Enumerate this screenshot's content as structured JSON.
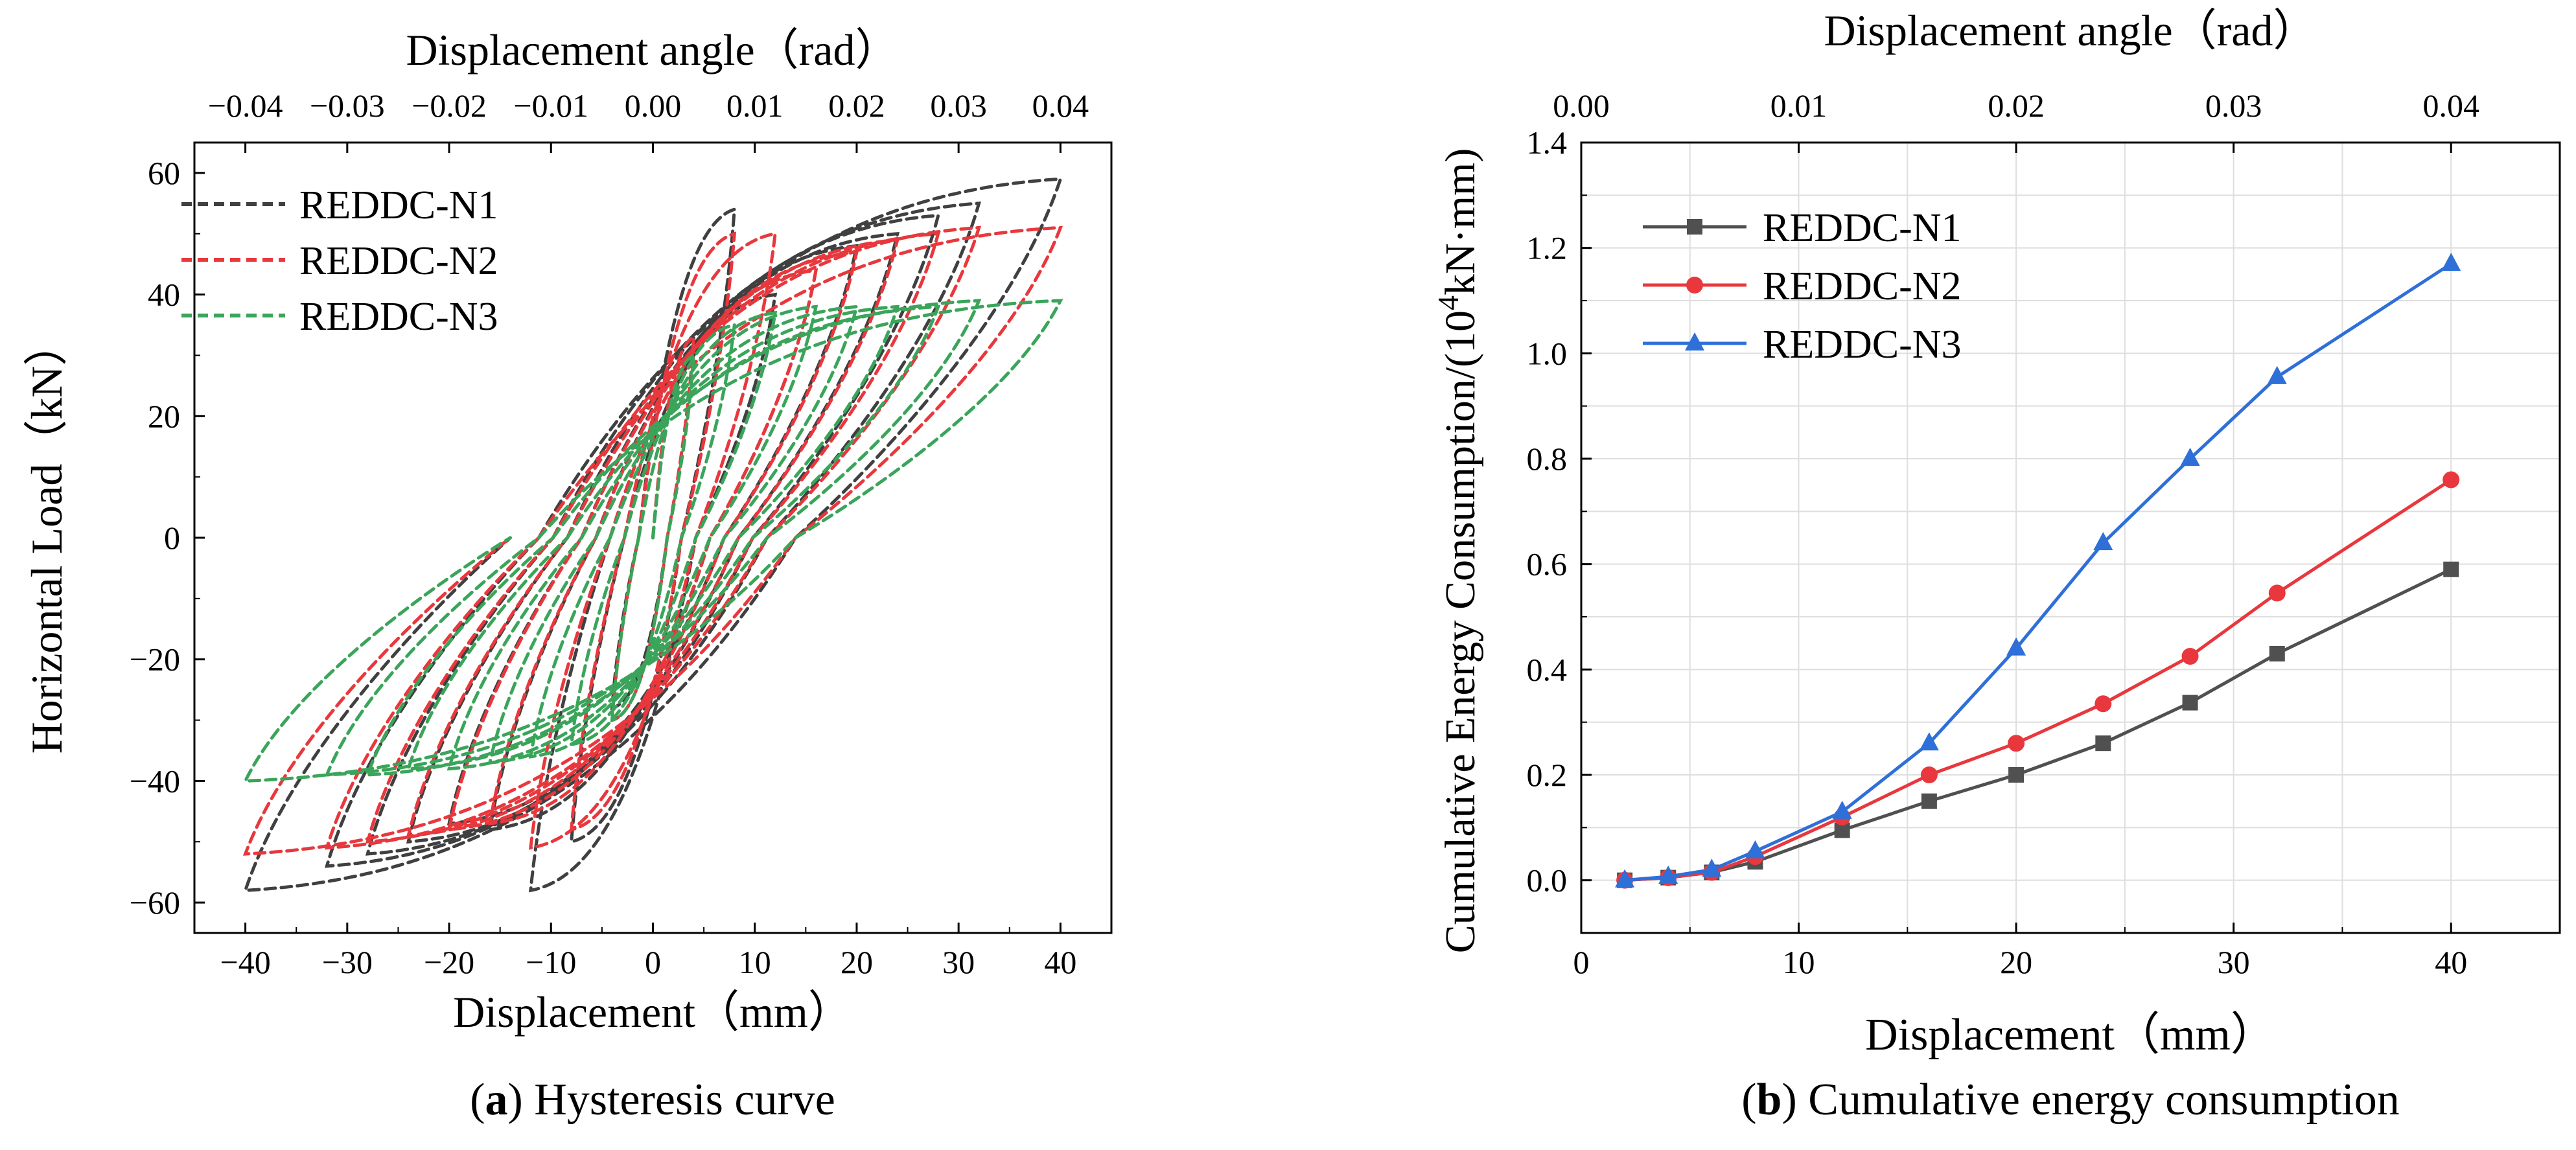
{
  "panels": {
    "a": {
      "caption_letter": "a",
      "caption_text": " Hysteresis curve"
    },
    "b": {
      "caption_letter": "b",
      "caption_text": " Cumulative energy consumption"
    }
  },
  "chart_data": [
    {
      "id": "a",
      "type": "line",
      "title": "",
      "xlabel": "Displacement（mm）",
      "ylabel": "Horizontal Load（kN）",
      "top_axis_label": "Displacement angle（rad）",
      "xlim": [
        -45,
        45
      ],
      "ylim": [
        -65,
        65
      ],
      "x_ticks": [
        -40,
        -30,
        -20,
        -10,
        0,
        10,
        20,
        30,
        40
      ],
      "x_tick_labels": [
        "−40",
        "−30",
        "−20",
        "−10",
        "0",
        "10",
        "20",
        "30",
        "40"
      ],
      "y_ticks": [
        -60,
        -40,
        -20,
        0,
        20,
        40,
        60
      ],
      "y_tick_labels": [
        "−60",
        "−40",
        "−20",
        "0",
        "20",
        "40",
        "60"
      ],
      "top_ticks": [
        -40,
        -30,
        -20,
        -10,
        0,
        10,
        20,
        30,
        40
      ],
      "top_tick_labels": [
        "−0.04",
        "−0.03",
        "−0.02",
        "−0.01",
        "0.00",
        "0.01",
        "0.02",
        "0.03",
        "0.04"
      ],
      "legend_position": "top-left",
      "line_style": "dashed",
      "series": [
        {
          "name": "REDDC-N1",
          "color": "#404040",
          "peaks": [
            [
              4,
              30
            ],
            [
              8,
              54
            ],
            [
              12,
              40
            ],
            [
              16,
              44
            ],
            [
              20,
              48
            ],
            [
              24,
              50
            ],
            [
              28,
              53
            ],
            [
              32,
              55
            ],
            [
              40,
              59
            ]
          ],
          "valleys": [
            [
              -4,
              -28
            ],
            [
              -8,
              -50
            ],
            [
              -12,
              -58
            ],
            [
              -16,
              -48
            ],
            [
              -20,
              -47
            ],
            [
              -24,
              -50
            ],
            [
              -28,
              -52
            ],
            [
              -32,
              -54
            ],
            [
              -40,
              -58
            ]
          ]
        },
        {
          "name": "REDDC-N2",
          "color": "#e8383d",
          "peaks": [
            [
              4,
              33
            ],
            [
              8,
              50
            ],
            [
              12,
              50
            ],
            [
              16,
              44
            ],
            [
              20,
              47
            ],
            [
              24,
              49
            ],
            [
              28,
              50
            ],
            [
              32,
              51
            ],
            [
              40,
              51
            ]
          ],
          "valleys": [
            [
              -4,
              -30
            ],
            [
              -8,
              -48
            ],
            [
              -12,
              -51
            ],
            [
              -16,
              -47
            ],
            [
              -20,
              -48
            ],
            [
              -24,
              -49
            ],
            [
              -28,
              -50
            ],
            [
              -32,
              -51
            ],
            [
              -40,
              -52
            ]
          ]
        },
        {
          "name": "REDDC-N3",
          "color": "#3aa55a",
          "peaks": [
            [
              4,
              30
            ],
            [
              8,
              35
            ],
            [
              12,
              37
            ],
            [
              16,
              38
            ],
            [
              20,
              38
            ],
            [
              24,
              38
            ],
            [
              28,
              38
            ],
            [
              32,
              39
            ],
            [
              40,
              39
            ]
          ],
          "valleys": [
            [
              -4,
              -30
            ],
            [
              -8,
              -34
            ],
            [
              -12,
              -36
            ],
            [
              -16,
              -37
            ],
            [
              -20,
              -38
            ],
            [
              -24,
              -38
            ],
            [
              -28,
              -39
            ],
            [
              -32,
              -39
            ],
            [
              -40,
              -40
            ]
          ]
        }
      ]
    },
    {
      "id": "b",
      "type": "line",
      "title": "",
      "xlabel": "Displacement（mm）",
      "ylabel": "Cumulative Energy Consumption/(10⁴kN·mm)",
      "ylabel_main": "Cumulative Energy Consumption/(10",
      "ylabel_sup": "4",
      "ylabel_tail": "kN·mm)",
      "top_axis_label": "Displacement angle（rad）",
      "xlim": [
        0,
        45
      ],
      "ylim": [
        -0.1,
        1.4
      ],
      "x_ticks": [
        0,
        10,
        20,
        30,
        40
      ],
      "x_tick_labels": [
        "0",
        "10",
        "20",
        "30",
        "40"
      ],
      "y_ticks": [
        0,
        0.2,
        0.4,
        0.6,
        0.8,
        1.0,
        1.2,
        1.4
      ],
      "y_tick_labels": [
        "0.0",
        "0.2",
        "0.4",
        "0.6",
        "0.8",
        "1.0",
        "1.2",
        "1.4"
      ],
      "top_ticks": [
        0,
        10,
        20,
        30,
        40
      ],
      "top_tick_labels": [
        "0.00",
        "0.01",
        "0.02",
        "0.03",
        "0.04"
      ],
      "legend_position": "top-left",
      "grid": true,
      "series": [
        {
          "name": "REDDC-N1",
          "color": "#505050",
          "marker": "square",
          "x": [
            2,
            4,
            6,
            8,
            12,
            16,
            20,
            24,
            28,
            32,
            40
          ],
          "y": [
            0.0,
            0.005,
            0.015,
            0.035,
            0.095,
            0.15,
            0.2,
            0.26,
            0.337,
            0.43,
            0.59
          ]
        },
        {
          "name": "REDDC-N2",
          "color": "#e8383d",
          "marker": "circle",
          "x": [
            2,
            4,
            6,
            8,
            12,
            16,
            20,
            24,
            28,
            32,
            40
          ],
          "y": [
            0.0,
            0.005,
            0.015,
            0.045,
            0.12,
            0.2,
            0.26,
            0.335,
            0.425,
            0.545,
            0.76
          ]
        },
        {
          "name": "REDDC-N3",
          "color": "#2e6fd8",
          "marker": "triangle",
          "x": [
            2,
            4,
            6,
            8,
            12,
            16,
            20,
            24,
            28,
            32,
            40
          ],
          "y": [
            0.0,
            0.007,
            0.02,
            0.055,
            0.13,
            0.26,
            0.44,
            0.64,
            0.8,
            0.955,
            1.17
          ]
        }
      ]
    }
  ]
}
